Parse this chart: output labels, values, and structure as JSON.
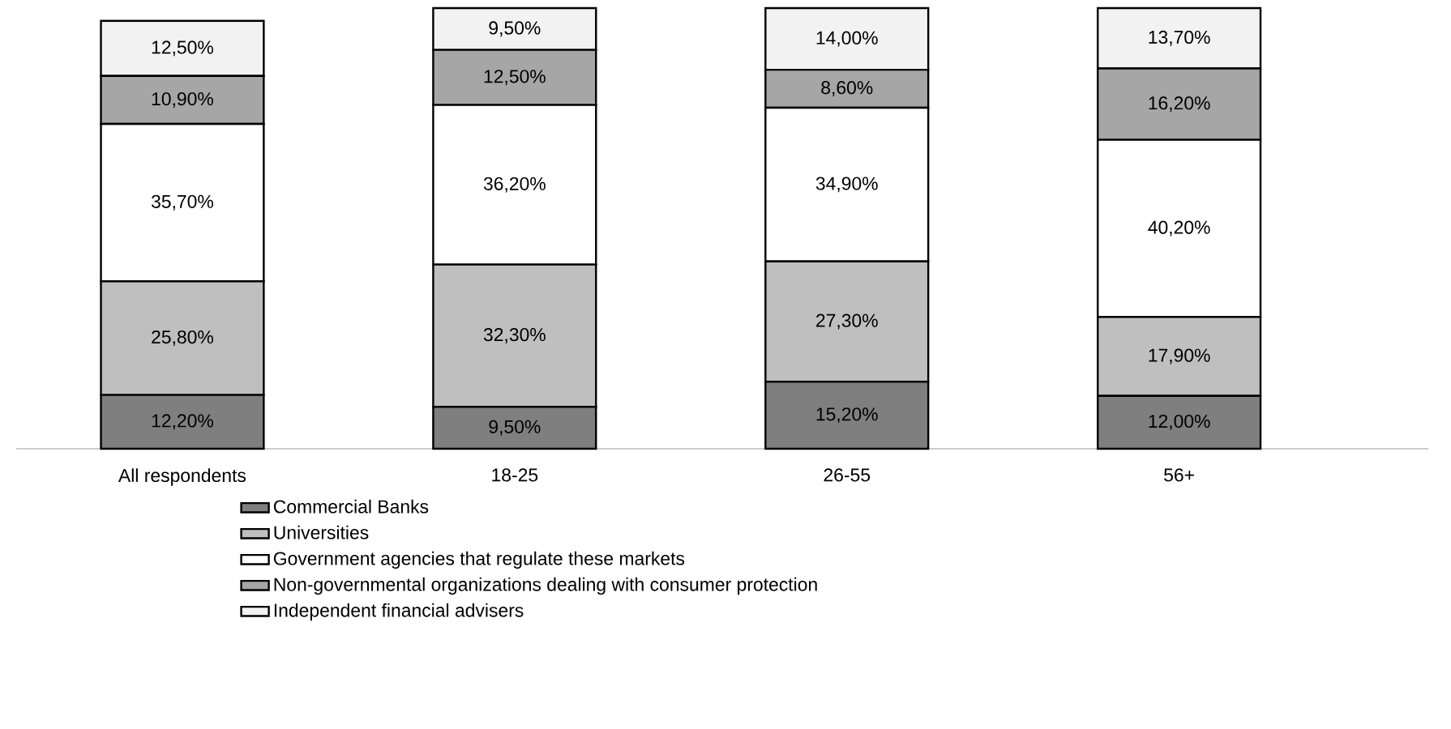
{
  "chart_data": {
    "type": "bar",
    "stacked": true,
    "legend": "bottom",
    "categories": [
      "All respondents",
      "18-25",
      "26-55",
      "56+"
    ],
    "series": [
      {
        "name": "Commercial Banks",
        "color": "#7f7f7f",
        "values": [
          12.2,
          9.5,
          15.2,
          12.0
        ],
        "value_labels": [
          "12,20%",
          "9,50%",
          "15,20%",
          "12,00%"
        ]
      },
      {
        "name": "Universities",
        "color": "#bfbfbf",
        "values": [
          25.8,
          32.3,
          27.3,
          17.9
        ],
        "value_labels": [
          "25,80%",
          "32,30%",
          "27,30%",
          "17,90%"
        ]
      },
      {
        "name": "Government agencies that regulate these markets",
        "color": "#ffffff",
        "values": [
          35.7,
          36.2,
          34.9,
          40.2
        ],
        "value_labels": [
          "35,70%",
          "36,20%",
          "34,90%",
          "40,20%"
        ]
      },
      {
        "name": "Non-governmental organizations dealing with consumer protection",
        "color": "#a6a6a6",
        "values": [
          10.9,
          12.5,
          8.6,
          16.2
        ],
        "value_labels": [
          "10,90%",
          "12,50%",
          "8,60%",
          "16,20%"
        ]
      },
      {
        "name": "Independent financial advisers",
        "color": "#f2f2f2",
        "values": [
          12.5,
          9.5,
          14.0,
          13.7
        ],
        "value_labels": [
          "12,50%",
          "9,50%",
          "14,00%",
          "13,70%"
        ]
      }
    ]
  }
}
